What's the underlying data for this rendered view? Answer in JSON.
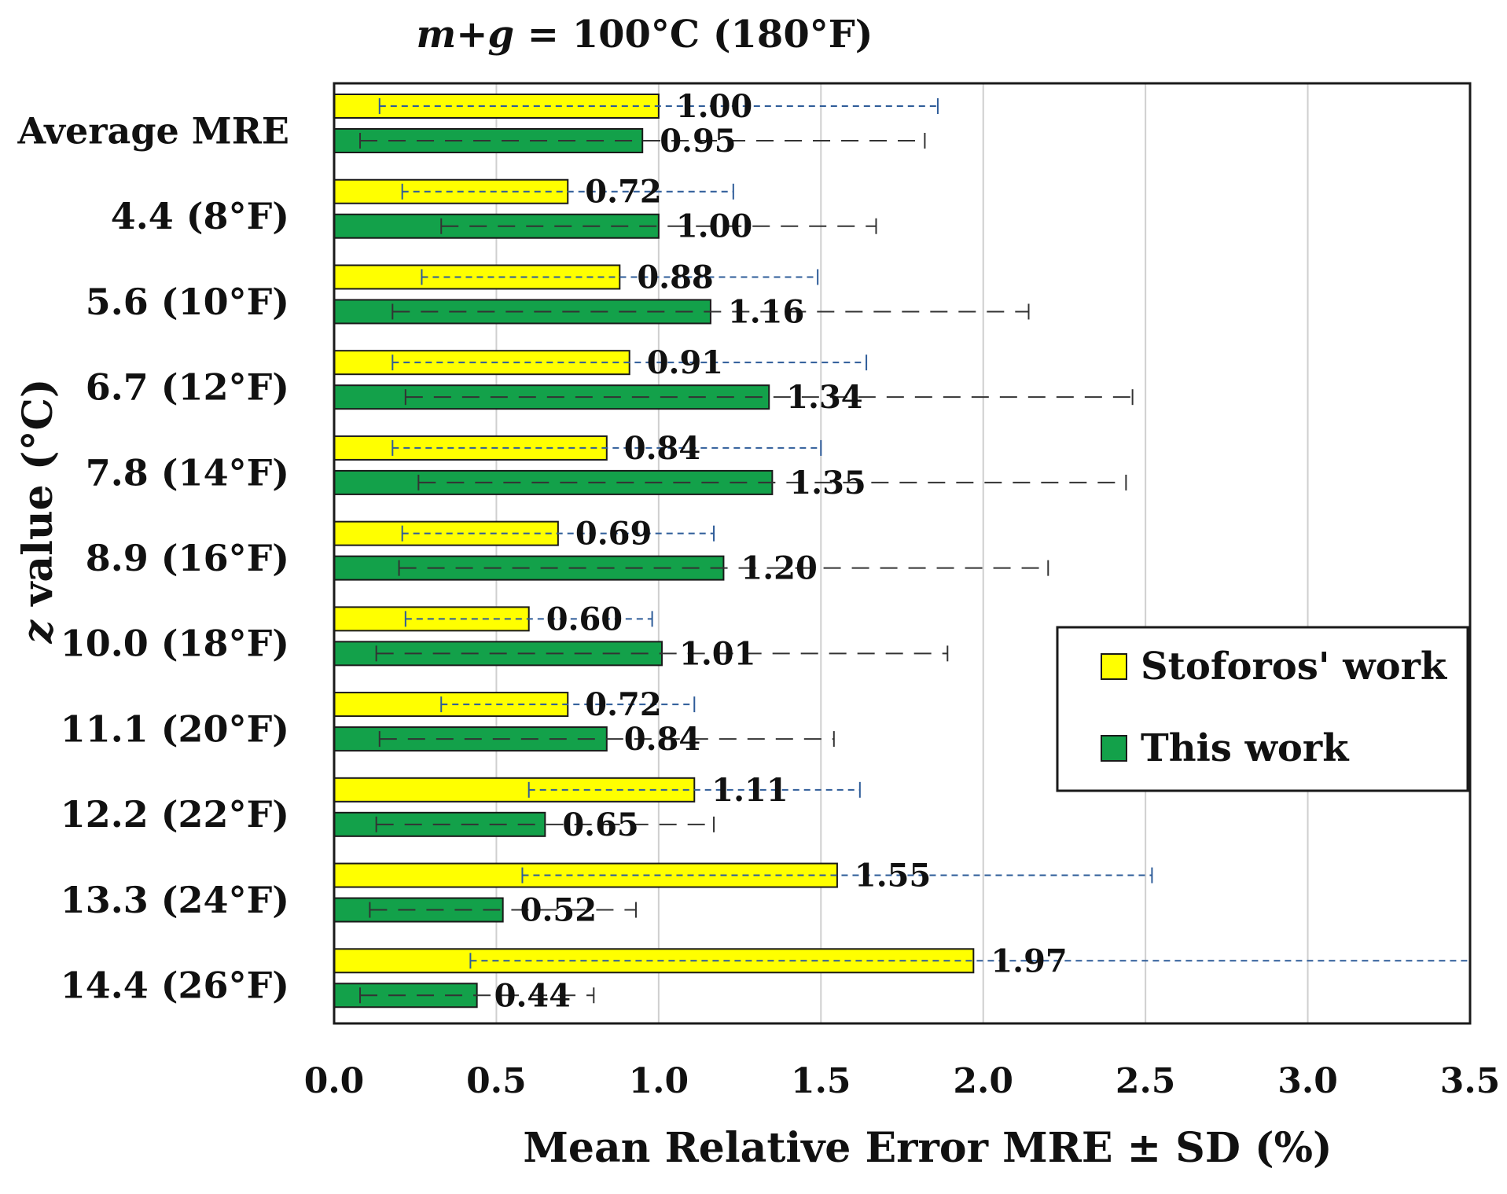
{
  "chart_data": {
    "type": "bar",
    "orientation": "horizontal",
    "title_italic": "m+g",
    "title_rest": " = 100°C (180°F)",
    "categories": [
      "Average MRE",
      "4.4 (8°F)",
      "5.6 (10°F)",
      "6.7 (12°F)",
      "7.8 (14°F)",
      "8.9 (16°F)",
      "10.0 (18°F)",
      "11.1 (20°F)",
      "12.2 (22°F)",
      "13.3 (24°F)",
      "14.4 (26°F)"
    ],
    "series": [
      {
        "name": "Stoforos' work",
        "color": "#ffff00",
        "values": [
          1.0,
          0.72,
          0.88,
          0.91,
          0.84,
          0.69,
          0.6,
          0.72,
          1.11,
          1.55,
          1.97
        ],
        "labels": [
          "1.00",
          "0.72",
          "0.88",
          "0.91",
          "0.84",
          "0.69",
          "0.60",
          "0.72",
          "1.11",
          "1.55",
          "1.97"
        ],
        "sd": [
          0.86,
          0.51,
          0.61,
          0.73,
          0.66,
          0.48,
          0.38,
          0.39,
          0.51,
          0.97,
          1.55
        ],
        "error_color": "#2e5c99"
      },
      {
        "name": "This work",
        "color": "#13a14a",
        "values": [
          0.95,
          1.0,
          1.16,
          1.34,
          1.35,
          1.2,
          1.01,
          0.84,
          0.65,
          0.52,
          0.44
        ],
        "labels": [
          "0.95",
          "1.00",
          "1.16",
          "1.34",
          "1.35",
          "1.20",
          "1.01",
          "0.84",
          "0.65",
          "0.52",
          "0.44"
        ],
        "sd": [
          0.87,
          0.67,
          0.98,
          1.12,
          1.09,
          1.0,
          0.88,
          0.7,
          0.52,
          0.41,
          0.36
        ],
        "error_color": "#333333"
      }
    ],
    "xlabel": "Mean Relative Error MRE ± SD (%)",
    "ylabel_italic": "z",
    "ylabel_rest": " value (°C)",
    "xlim": [
      0,
      3.5
    ],
    "xticks": [
      0.0,
      0.5,
      1.0,
      1.5,
      2.0,
      2.5,
      3.0,
      3.5
    ],
    "xtick_labels": [
      "0.0",
      "0.5",
      "1.0",
      "1.5",
      "2.0",
      "2.5",
      "3.0",
      "3.5"
    ],
    "grid": true,
    "legend_position": "right"
  }
}
